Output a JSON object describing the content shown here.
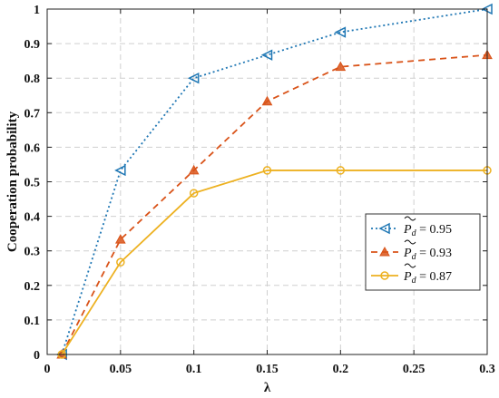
{
  "chart_data": {
    "type": "line",
    "title": "",
    "xlabel": "λ",
    "ylabel": "Cooperation probability",
    "xlim": [
      0,
      0.3
    ],
    "ylim": [
      0,
      1
    ],
    "xticks": [
      0,
      0.05,
      0.1,
      0.15,
      0.2,
      0.25,
      0.3
    ],
    "xtick_labels": [
      "0",
      "0.05",
      "0.1",
      "0.15",
      "0.2",
      "0.25",
      "0.3"
    ],
    "yticks": [
      0,
      0.1,
      0.2,
      0.3,
      0.4,
      0.5,
      0.6,
      0.7,
      0.8,
      0.9,
      1
    ],
    "ytick_labels": [
      "0",
      "0.1",
      "0.2",
      "0.3",
      "0.4",
      "0.5",
      "0.6",
      "0.7",
      "0.8",
      "0.9",
      "1"
    ],
    "grid": true,
    "legend_position": "center-right",
    "x": [
      0.01,
      0.05,
      0.1,
      0.15,
      0.2,
      0.3
    ],
    "series": [
      {
        "name": "P̃d = 0.95",
        "legend_value": "0.95",
        "color": "#1f77b4",
        "line_style": "dotted",
        "marker": "triangle-left",
        "values": [
          0,
          0.533,
          0.8,
          0.867,
          0.933,
          1.0
        ]
      },
      {
        "name": "P̃d = 0.93",
        "legend_value": "0.93",
        "color": "#d95319",
        "line_style": "dashed",
        "marker": "triangle-up",
        "values": [
          0,
          0.333,
          0.533,
          0.733,
          0.833,
          0.867
        ]
      },
      {
        "name": "P̃d = 0.87",
        "legend_value": "0.87",
        "color": "#edb120",
        "line_style": "solid",
        "marker": "circle",
        "values": [
          0,
          0.267,
          0.467,
          0.533,
          0.533,
          0.533
        ]
      }
    ]
  }
}
